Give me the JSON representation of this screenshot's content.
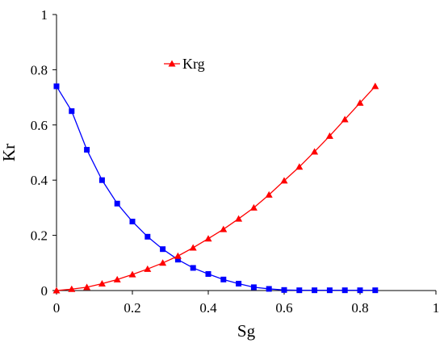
{
  "chart_data": {
    "type": "line",
    "xlabel": "Sg",
    "ylabel": "Kr",
    "xlim": [
      0,
      1
    ],
    "ylim": [
      0,
      1
    ],
    "xticks": [
      "0",
      "0.2",
      "0.4",
      "0.6",
      "0.8",
      "1"
    ],
    "yticks": [
      "0",
      "0.2",
      "0.4",
      "0.6",
      "0.8",
      "1"
    ],
    "grid": false,
    "legend_position": "top-center",
    "series": [
      {
        "name": "",
        "color": "#0000ff",
        "marker": "square",
        "x": [
          0,
          0.04,
          0.08,
          0.12,
          0.16,
          0.2,
          0.24,
          0.28,
          0.32,
          0.36,
          0.4,
          0.44,
          0.48,
          0.52,
          0.56,
          0.6,
          0.64,
          0.68,
          0.72,
          0.76,
          0.8,
          0.84
        ],
        "y": [
          0.74,
          0.65,
          0.51,
          0.4,
          0.315,
          0.25,
          0.195,
          0.15,
          0.112,
          0.082,
          0.06,
          0.04,
          0.025,
          0.012,
          0.006,
          0.002,
          0.001,
          0.001,
          0.001,
          0.001,
          0.001,
          0.001
        ]
      },
      {
        "name": "Krg",
        "color": "#ff0000",
        "marker": "triangle",
        "x": [
          0,
          0.04,
          0.08,
          0.12,
          0.16,
          0.2,
          0.24,
          0.28,
          0.32,
          0.36,
          0.4,
          0.44,
          0.48,
          0.52,
          0.56,
          0.6,
          0.64,
          0.68,
          0.72,
          0.76,
          0.8,
          0.84
        ],
        "y": [
          0.0,
          0.005,
          0.012,
          0.025,
          0.04,
          0.058,
          0.078,
          0.1,
          0.125,
          0.155,
          0.188,
          0.222,
          0.26,
          0.3,
          0.347,
          0.398,
          0.448,
          0.503,
          0.56,
          0.62,
          0.68,
          0.74
        ]
      }
    ]
  }
}
